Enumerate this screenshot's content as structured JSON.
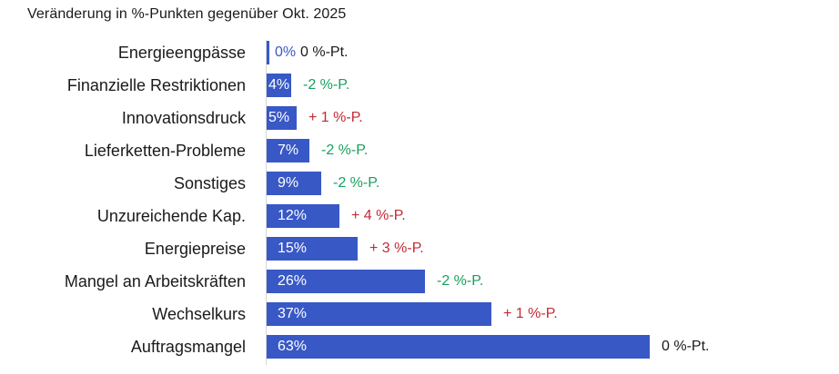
{
  "title": "Veränderung in %-Punkten gegenüber Okt. 2025",
  "colors": {
    "bar": "#3858c6",
    "bar_label_inside": "#ffffff",
    "bar_label_outside": "#3858c6",
    "positive_change": "#c22b34",
    "negative_change": "#18a05e",
    "zero_change": "#1a1a1a",
    "axis": "#d6d6d6",
    "text": "#1a1a1a",
    "background": "#ffffff"
  },
  "chart_data": {
    "type": "bar",
    "orientation": "horizontal",
    "title": "Veränderung in %-Punkten gegenüber Okt. 2025",
    "categories": [
      "Energieengpässe",
      "Finanzielle Restriktionen",
      "Innovationsdruck",
      "Lieferketten-Probleme",
      "Sonstiges",
      "Unzureichende Kap.",
      "Energiepreise",
      "Mangel an Arbeitskräften",
      "Wechselkurs",
      "Auftragsmangel"
    ],
    "values": [
      0,
      4,
      5,
      7,
      9,
      12,
      15,
      26,
      37,
      63
    ],
    "value_labels": [
      "0%",
      "4%",
      "5%",
      "7%",
      "9%",
      "12%",
      "15%",
      "26%",
      "37%",
      "63%"
    ],
    "change_labels": [
      "0 %-Pt.",
      "-2 %-P.",
      "+ 1 %-P.",
      "-2 %-P.",
      "-2 %-P.",
      "+ 4 %-P.",
      "+ 3 %-P.",
      "-2 %-P.",
      "+ 1 %-P.",
      "0 %-Pt."
    ],
    "change_values": [
      0,
      -2,
      1,
      -2,
      -2,
      4,
      3,
      -2,
      1,
      0
    ],
    "change_types": [
      "zero",
      "negative",
      "positive",
      "negative",
      "negative",
      "positive",
      "positive",
      "negative",
      "positive",
      "zero"
    ],
    "xlim": [
      0,
      63
    ],
    "unit": "%",
    "grid": false,
    "legend": false
  }
}
